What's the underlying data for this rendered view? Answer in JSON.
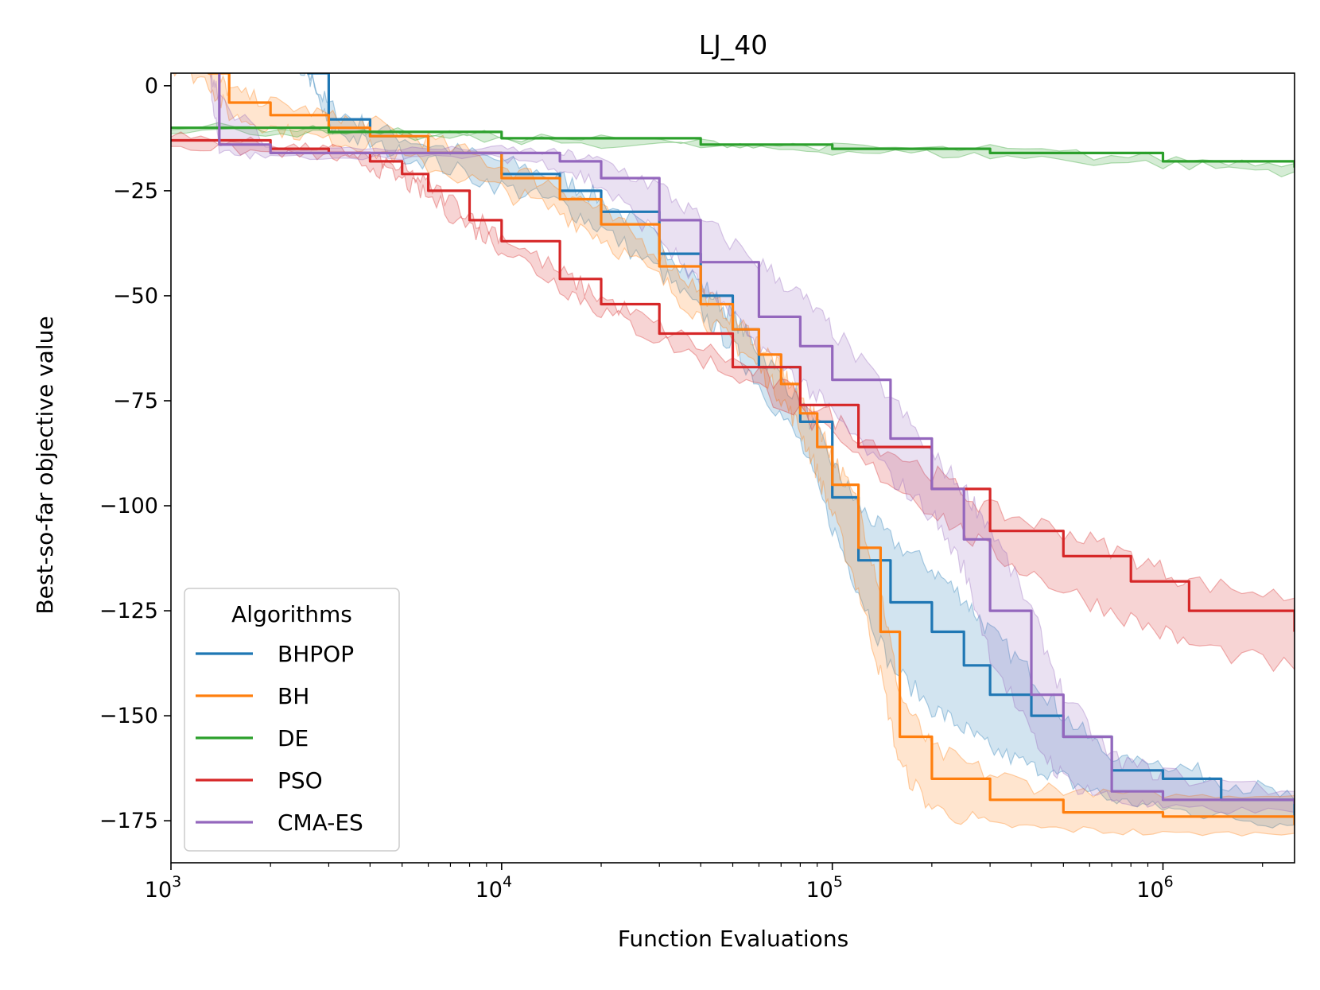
{
  "chart_data": {
    "type": "line",
    "title": "LJ_40",
    "xlabel": "Function Evaluations",
    "ylabel": "Best-so-far objective value",
    "xscale": "log",
    "xlim": [
      1000,
      2500000
    ],
    "ylim": [
      -185,
      3
    ],
    "x_ticks": [
      {
        "value": 1000,
        "base": "10",
        "exp": "3"
      },
      {
        "value": 10000,
        "base": "10",
        "exp": "4"
      },
      {
        "value": 100000,
        "base": "10",
        "exp": "5"
      },
      {
        "value": 1000000,
        "base": "10",
        "exp": "6"
      }
    ],
    "y_ticks": [
      {
        "value": 0,
        "label": "0"
      },
      {
        "value": -25,
        "label": "−25"
      },
      {
        "value": -50,
        "label": "−50"
      },
      {
        "value": -75,
        "label": "−75"
      },
      {
        "value": -100,
        "label": "−100"
      },
      {
        "value": -125,
        "label": "−125"
      },
      {
        "value": -150,
        "label": "−150"
      },
      {
        "value": -175,
        "label": "−175"
      }
    ],
    "legend": {
      "title": "Algorithms",
      "position": "lower-left"
    },
    "series": [
      {
        "name": "BHPOP",
        "color": "#1f77b4",
        "x": [
          1000,
          1500,
          2000,
          2600,
          3000,
          4000,
          6000,
          10000,
          15000,
          20000,
          30000,
          40000,
          50000,
          60000,
          80000,
          100000,
          120000,
          150000,
          200000,
          250000,
          300000,
          400000,
          500000,
          700000,
          1000000,
          1500000,
          2500000
        ],
        "y": [
          5,
          5,
          5,
          3,
          -8,
          -12,
          -16,
          -21,
          -25,
          -30,
          -40,
          -50,
          -58,
          -67,
          -80,
          -98,
          -113,
          -123,
          -130,
          -138,
          -145,
          -150,
          -155,
          -163,
          -165,
          -170,
          -174
        ],
        "upper": [
          5,
          5,
          5,
          3,
          -5,
          -10,
          -14,
          -18,
          -22,
          -27,
          -37,
          -47,
          -55,
          -63,
          -75,
          -90,
          -100,
          -108,
          -115,
          -122,
          -130,
          -140,
          -150,
          -160,
          -161,
          -165,
          -170
        ],
        "lower": [
          5,
          5,
          5,
          3,
          -10,
          -14,
          -18,
          -24,
          -28,
          -34,
          -44,
          -54,
          -62,
          -71,
          -85,
          -105,
          -120,
          -138,
          -148,
          -153,
          -158,
          -162,
          -165,
          -170,
          -172,
          -174,
          -176
        ]
      },
      {
        "name": "BH",
        "color": "#ff7f0e",
        "x": [
          1000,
          1300,
          1500,
          2000,
          3000,
          4000,
          6000,
          10000,
          15000,
          20000,
          30000,
          40000,
          50000,
          60000,
          70000,
          80000,
          90000,
          100000,
          120000,
          140000,
          160000,
          200000,
          300000,
          500000,
          1000000,
          2500000
        ],
        "y": [
          5,
          3,
          -4,
          -7,
          -10,
          -12,
          -16,
          -22,
          -27,
          -33,
          -43,
          -52,
          -58,
          -64,
          -71,
          -78,
          -86,
          -95,
          -110,
          -130,
          -155,
          -165,
          -170,
          -173,
          -174,
          -176
        ],
        "upper": [
          5,
          4,
          -1,
          -4,
          -7,
          -9,
          -13,
          -19,
          -24,
          -30,
          -40,
          -49,
          -55,
          -61,
          -68,
          -74,
          -80,
          -88,
          -100,
          -120,
          -145,
          -158,
          -164,
          -168,
          -169,
          -169
        ],
        "lower": [
          5,
          1,
          -7,
          -10,
          -13,
          -15,
          -19,
          -25,
          -30,
          -36,
          -46,
          -55,
          -61,
          -67,
          -74,
          -82,
          -92,
          -102,
          -120,
          -140,
          -162,
          -172,
          -176,
          -177,
          -178,
          -178
        ]
      },
      {
        "name": "DE",
        "color": "#2ca02c",
        "x": [
          1000,
          3000,
          10000,
          40000,
          100000,
          300000,
          1000000,
          2500000
        ],
        "y": [
          -10,
          -11,
          -12.5,
          -14,
          -15,
          -16,
          -18,
          -19.5
        ],
        "upper": [
          -9.5,
          -10.5,
          -12,
          -13.5,
          -14.5,
          -15.3,
          -17.3,
          -18.5
        ],
        "lower": [
          -10.5,
          -11.5,
          -13,
          -14.5,
          -15.5,
          -16.7,
          -18.7,
          -20.5
        ]
      },
      {
        "name": "PSO",
        "color": "#d62728",
        "x": [
          1000,
          2000,
          3000,
          4000,
          5000,
          6000,
          8000,
          10000,
          15000,
          20000,
          30000,
          50000,
          80000,
          120000,
          200000,
          300000,
          500000,
          800000,
          1200000,
          2500000
        ],
        "y": [
          -13,
          -15,
          -16,
          -18,
          -21,
          -25,
          -32,
          -37,
          -46,
          -52,
          -59,
          -67,
          -76,
          -86,
          -96,
          -106,
          -112,
          -118,
          -125,
          -130
        ],
        "upper": [
          -12,
          -14,
          -15,
          -17,
          -20,
          -23.5,
          -30.5,
          -35.5,
          -44.5,
          -50.5,
          -57.5,
          -65.5,
          -74,
          -83,
          -92,
          -101,
          -106,
          -112,
          -118,
          -122
        ],
        "lower": [
          -14,
          -16,
          -17,
          -19,
          -22.5,
          -26.5,
          -33.5,
          -38.5,
          -47.5,
          -53.5,
          -60.5,
          -68.5,
          -78,
          -89,
          -101,
          -111,
          -120,
          -127,
          -133,
          -139
        ]
      },
      {
        "name": "CMA-ES",
        "color": "#9467bd",
        "x": [
          1000,
          1300,
          1400,
          2000,
          5000,
          10000,
          15000,
          20000,
          30000,
          40000,
          60000,
          80000,
          100000,
          150000,
          200000,
          250000,
          300000,
          400000,
          500000,
          700000,
          1000000,
          2500000
        ],
        "y": [
          5,
          5,
          -14,
          -16,
          -16,
          -16,
          -18,
          -22,
          -32,
          -42,
          -55,
          -62,
          -70,
          -84,
          -96,
          -108,
          -125,
          -145,
          -155,
          -168,
          -170,
          -171
        ],
        "upper": [
          5,
          5,
          -2,
          -15,
          -15,
          -15,
          -16,
          -18,
          -24,
          -32,
          -42,
          -50,
          -58,
          -74,
          -88,
          -96,
          -105,
          -125,
          -145,
          -160,
          -164,
          -168
        ],
        "lower": [
          5,
          5,
          -16,
          -17,
          -17,
          -17,
          -19,
          -24,
          -36,
          -48,
          -62,
          -70,
          -78,
          -93,
          -102,
          -115,
          -135,
          -155,
          -165,
          -170,
          -172,
          -173
        ]
      }
    ]
  }
}
